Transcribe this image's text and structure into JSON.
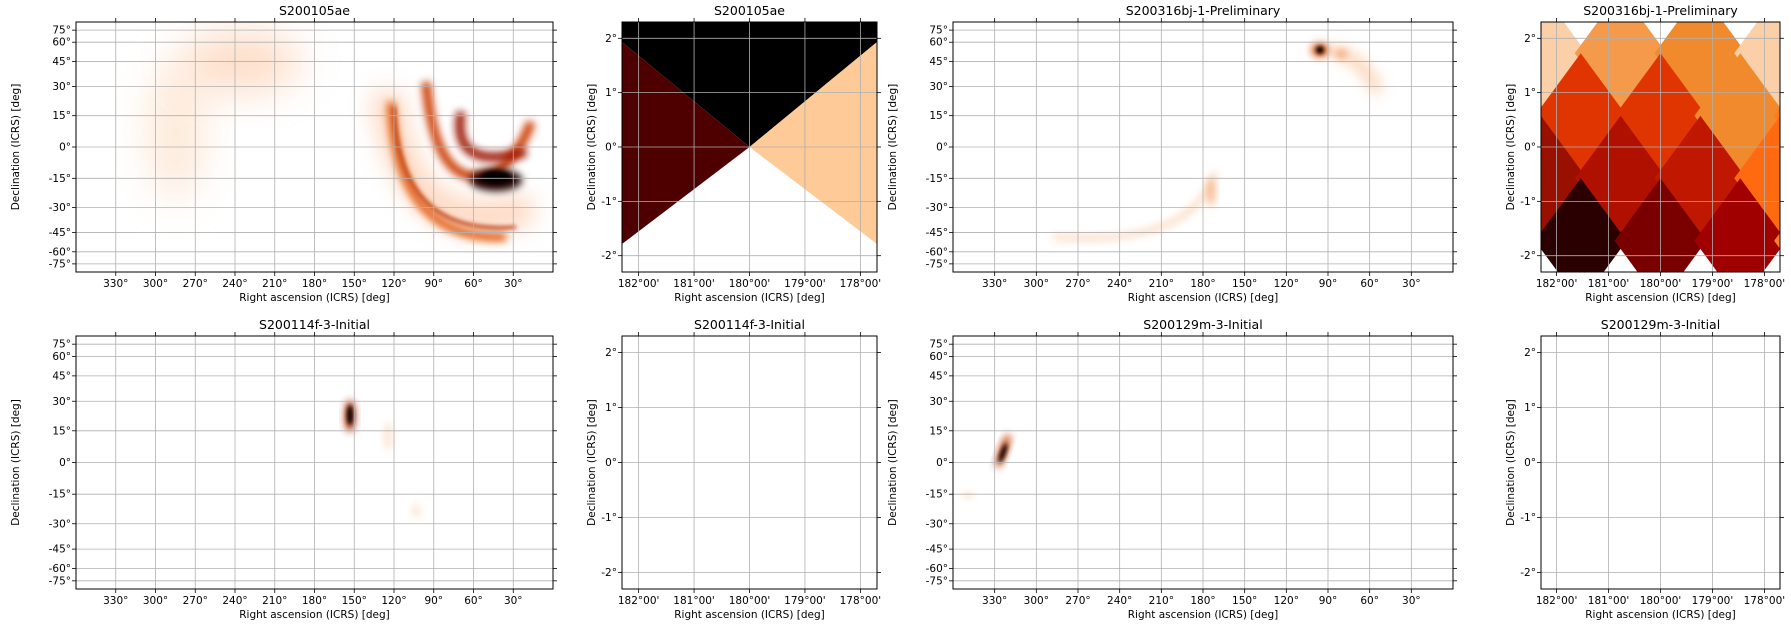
{
  "figure": {
    "panels": [
      {
        "kind": "allsky",
        "title": "S200105ae",
        "blobs": "ae_sky"
      },
      {
        "kind": "zoom",
        "title": "S200105ae",
        "blobs": "ae_zoom"
      },
      {
        "kind": "allsky",
        "title": "S200316bj-1-Preliminary",
        "blobs": "bj_sky"
      },
      {
        "kind": "zoom",
        "title": "S200316bj-1-Preliminary",
        "blobs": "bj_zoom"
      },
      {
        "kind": "allsky",
        "title": "S200114f-3-Initial",
        "blobs": "f_sky"
      },
      {
        "kind": "zoom",
        "title": "S200114f-3-Initial",
        "blobs": "none"
      },
      {
        "kind": "allsky",
        "title": "S200129m-3-Initial",
        "blobs": "m_sky"
      },
      {
        "kind": "zoom",
        "title": "S200129m-3-Initial",
        "blobs": "none"
      }
    ]
  },
  "axes": {
    "xlabel": "Right ascension (ICRS) [deg]",
    "ylabel": "Declination (ICRS) [deg]",
    "allsky_xticks": [
      "330°",
      "300°",
      "270°",
      "240°",
      "210°",
      "180°",
      "150°",
      "120°",
      "90°",
      "60°",
      "30°"
    ],
    "allsky_xtick_values": [
      330,
      300,
      270,
      240,
      210,
      180,
      150,
      120,
      90,
      60,
      30
    ],
    "allsky_yticks": [
      "75°",
      "60°",
      "45°",
      "30°",
      "15°",
      "0°",
      "-15°",
      "-30°",
      "-45°",
      "-60°",
      "-75°"
    ],
    "allsky_ytick_values": [
      75,
      60,
      45,
      30,
      15,
      0,
      -15,
      -30,
      -45,
      -60,
      -75
    ],
    "zoom_xticks": [
      "182°00'",
      "181°00'",
      "180°00'",
      "179°00'",
      "178°00'"
    ],
    "zoom_xtick_values": [
      182,
      181,
      180,
      179,
      178
    ],
    "zoom_yticks": [
      "2°",
      "1°",
      "0°",
      "-1°",
      "-2°"
    ],
    "zoom_ytick_values": [
      2,
      1,
      0,
      -1,
      -2
    ]
  },
  "chart_data": {
    "type": "heatmap",
    "colormap": "gist_heat_r",
    "grid": true,
    "allsky_ra_range": [
      360,
      0
    ],
    "allsky_dec_range": [
      -90,
      90
    ],
    "zoom_ra_range": [
      182.3,
      177.7
    ],
    "zoom_dec_range": [
      -2.3,
      2.3
    ]
  }
}
